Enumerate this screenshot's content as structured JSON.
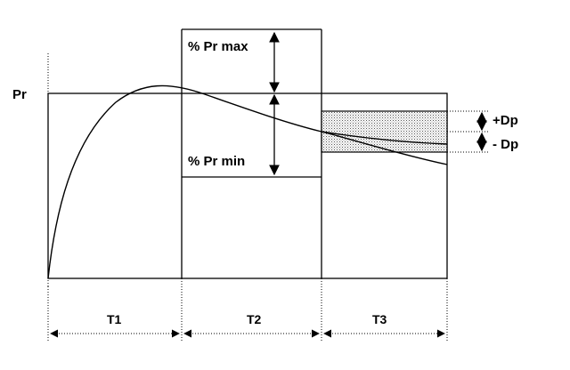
{
  "labels": {
    "pr": "Pr",
    "pr_max": "% Pr max",
    "pr_min": "% Pr min",
    "plus_dp": "+Dp",
    "minus_dp": "- Dp",
    "t1": "T1",
    "t2": "T2",
    "t3": "T3"
  },
  "colors": {
    "line": "#000000",
    "band_fill": "#d9d9d9"
  }
}
